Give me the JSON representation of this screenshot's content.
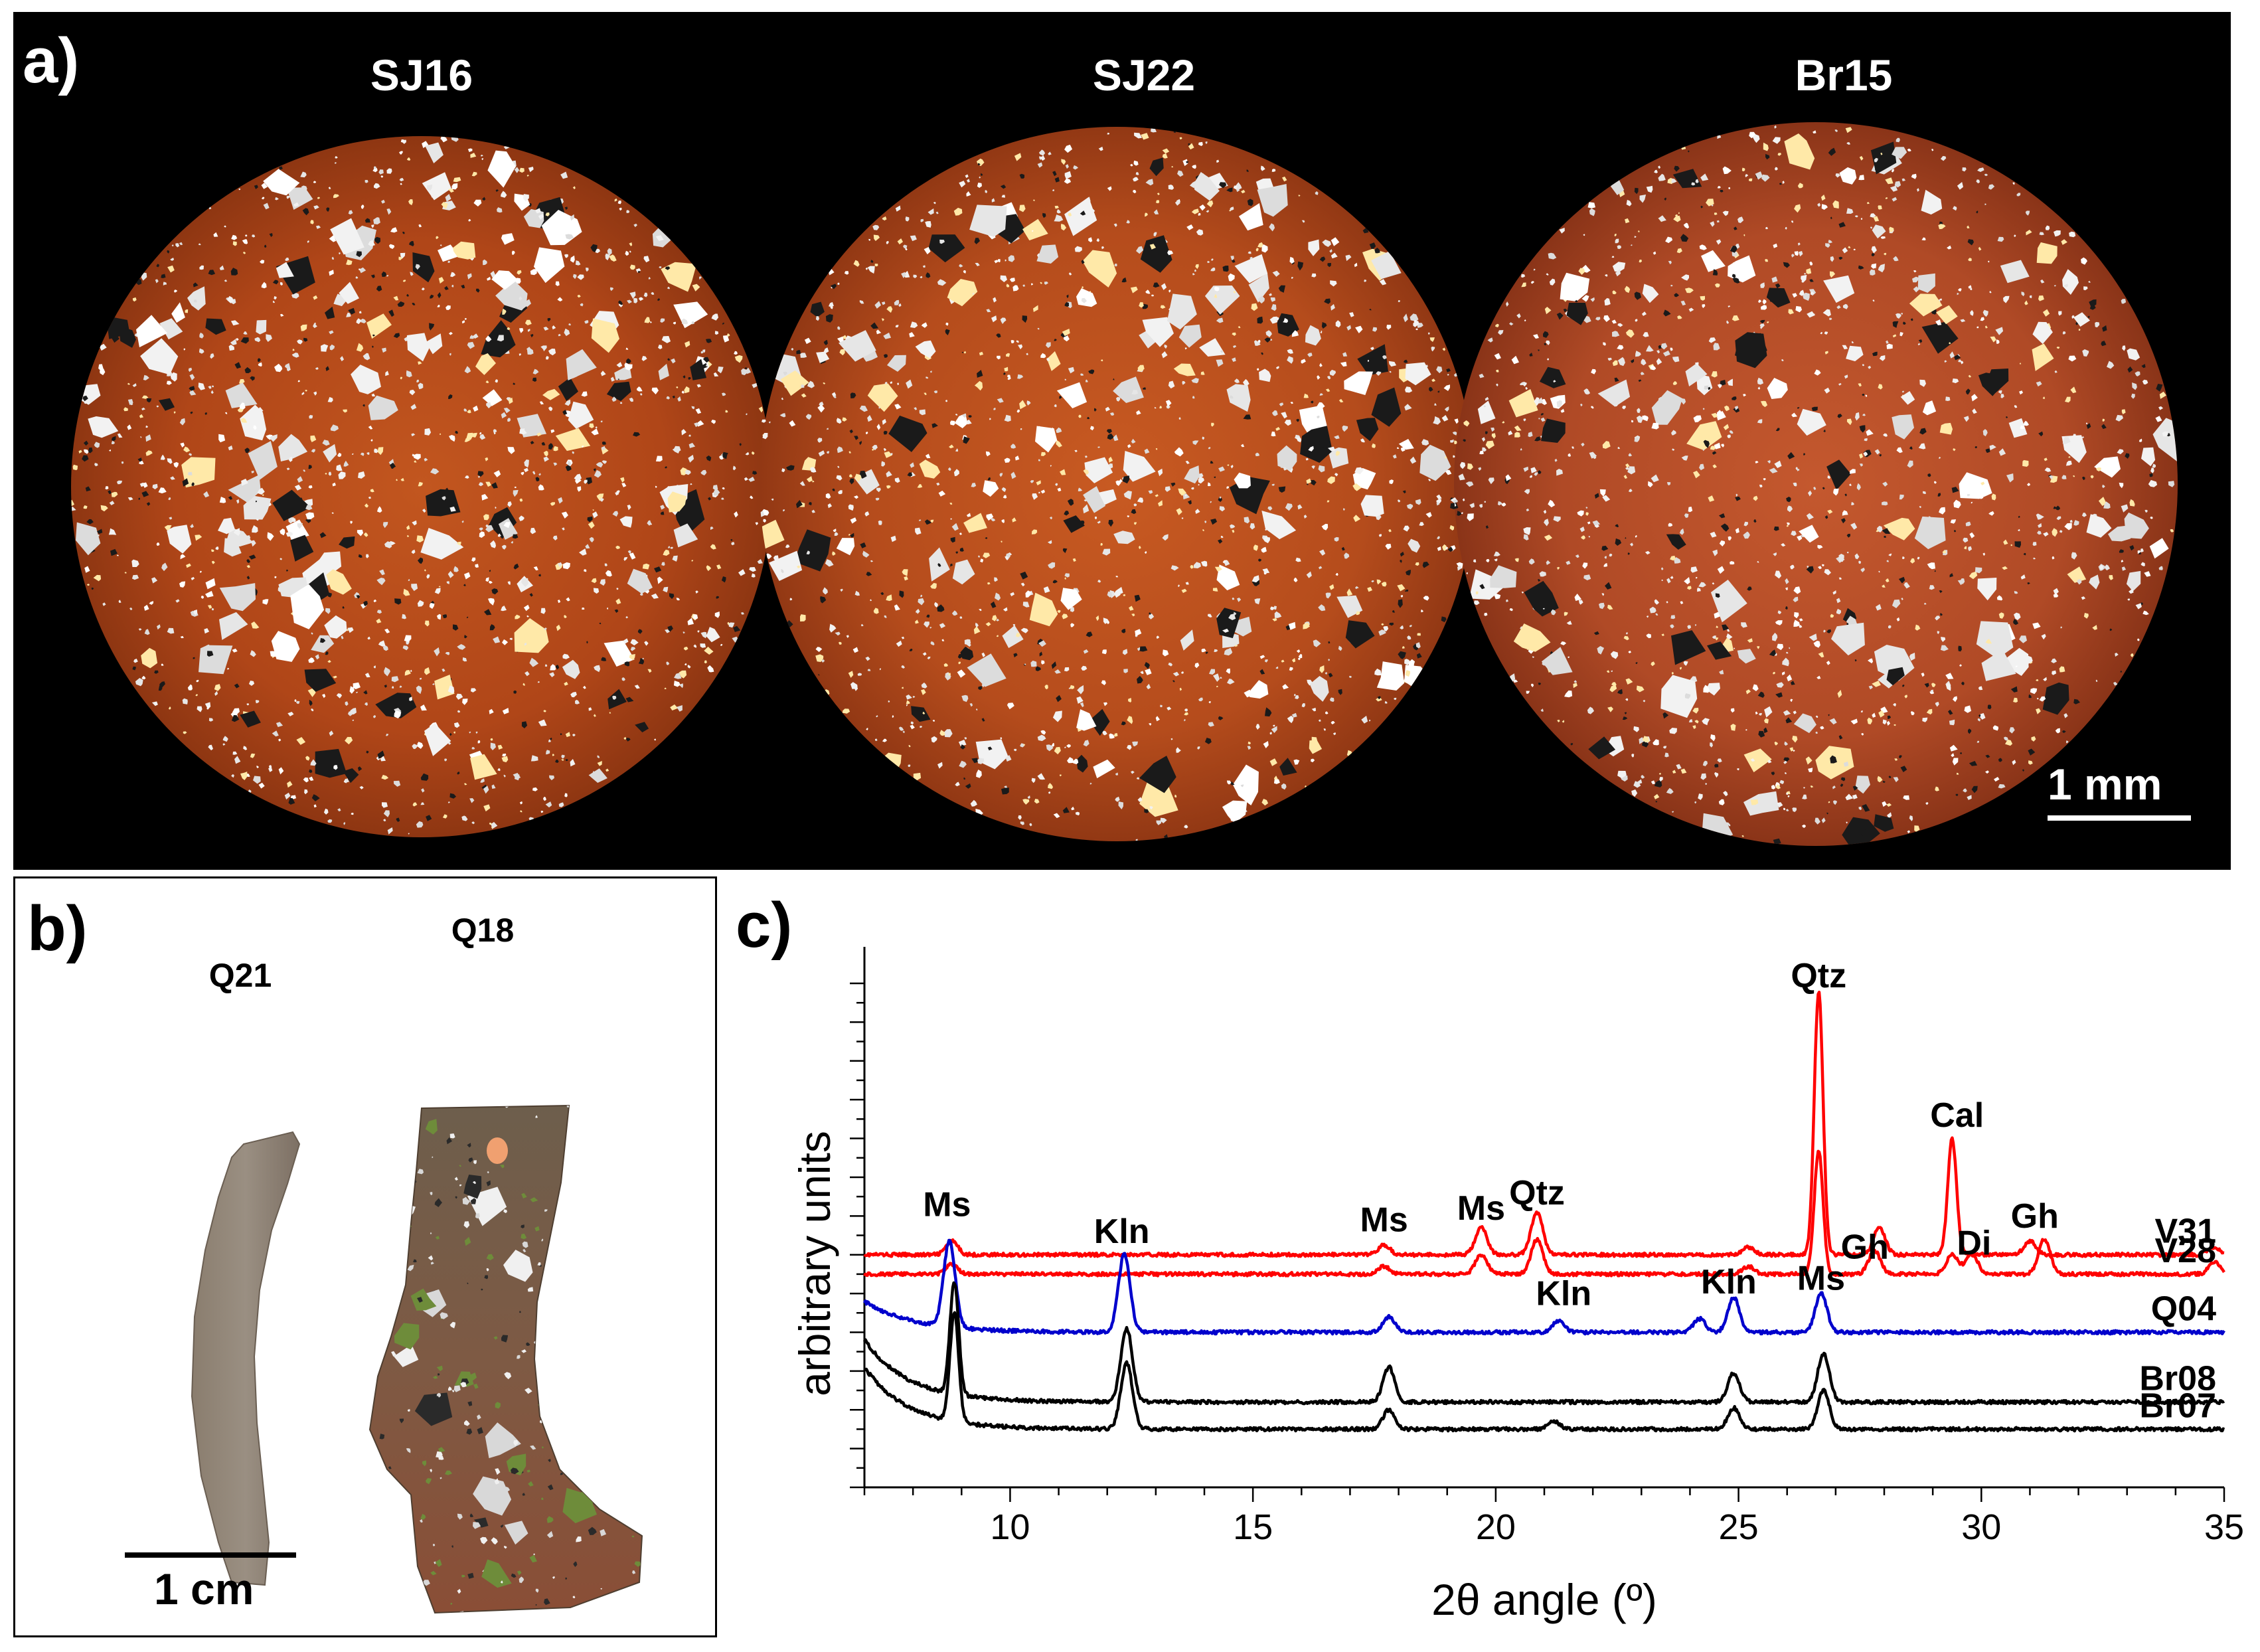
{
  "panel_a": {
    "letter": "a)",
    "samples": [
      "SJ16",
      "SJ22",
      "Br15"
    ],
    "scale_label": "1 mm"
  },
  "panel_b": {
    "letter": "b)",
    "sherds": [
      "Q21",
      "Q18"
    ],
    "scale_label": "1 cm"
  },
  "panel_c": {
    "letter": "c)"
  },
  "colors": {
    "red_series": "#ff0000",
    "blue_series": "#0000cc",
    "black_series": "#000000",
    "fabric": "#b5491c"
  },
  "chart_data": {
    "type": "line",
    "title": "",
    "xlabel": "2θ angle (º)",
    "ylabel": "arbitrary units",
    "xlim": [
      7,
      35
    ],
    "xticks": [
      10,
      15,
      20,
      25,
      30,
      35
    ],
    "y_ticks_labeled": false,
    "series": [
      {
        "name": "V31",
        "color": "#ff0000",
        "baseline": 6.0,
        "peaks": [
          [
            8.8,
            0.35
          ],
          [
            17.7,
            0.25
          ],
          [
            19.7,
            0.7
          ],
          [
            20.85,
            1.1
          ],
          [
            25.2,
            0.2
          ],
          [
            26.65,
            6.8
          ],
          [
            27.9,
            0.7
          ],
          [
            29.4,
            3.0
          ],
          [
            31.0,
            0.35
          ],
          [
            34.8,
            0.2
          ]
        ]
      },
      {
        "name": "V28",
        "color": "#ff0000",
        "baseline": 5.5,
        "peaks": [
          [
            8.8,
            0.25
          ],
          [
            17.7,
            0.2
          ],
          [
            19.7,
            0.5
          ],
          [
            20.85,
            0.9
          ],
          [
            25.2,
            0.2
          ],
          [
            26.65,
            3.2
          ],
          [
            27.8,
            0.6
          ],
          [
            29.4,
            0.5
          ],
          [
            29.8,
            0.55
          ],
          [
            31.3,
            0.9
          ],
          [
            34.8,
            0.3
          ]
        ]
      },
      {
        "name": "Q04",
        "color": "#0000cc",
        "baseline": 4.0,
        "peaks": [
          [
            8.75,
            2.2
          ],
          [
            12.35,
            2.0
          ],
          [
            17.8,
            0.4
          ],
          [
            21.3,
            0.3
          ],
          [
            24.2,
            0.35
          ],
          [
            24.9,
            0.9
          ],
          [
            26.7,
            1.0
          ]
        ]
      },
      {
        "name": "Br08",
        "color": "#000000",
        "baseline": 2.2,
        "peaks": [
          [
            8.85,
            2.9
          ],
          [
            12.4,
            1.9
          ],
          [
            17.8,
            0.9
          ],
          [
            24.9,
            0.75
          ],
          [
            26.75,
            1.25
          ]
        ]
      },
      {
        "name": "Br07",
        "color": "#000000",
        "baseline": 1.5,
        "peaks": [
          [
            8.85,
            2.8
          ],
          [
            12.4,
            1.7
          ],
          [
            17.8,
            0.5
          ],
          [
            21.2,
            0.2
          ],
          [
            24.9,
            0.55
          ],
          [
            26.75,
            1.0
          ]
        ]
      }
    ],
    "annotations": [
      {
        "text": "Ms",
        "x": 8.7,
        "y": 7.0
      },
      {
        "text": "Ms",
        "x": 17.7,
        "y": 6.6
      },
      {
        "text": "Ms",
        "x": 19.7,
        "y": 6.9
      },
      {
        "text": "Qtz",
        "x": 20.85,
        "y": 7.3
      },
      {
        "text": "Qtz",
        "x": 26.65,
        "y": 12.9
      },
      {
        "text": "Cal",
        "x": 29.5,
        "y": 9.3
      },
      {
        "text": "Gh",
        "x": 31.1,
        "y": 6.7
      },
      {
        "text": "Gh",
        "x": 27.6,
        "y": 5.9
      },
      {
        "text": "Di",
        "x": 29.85,
        "y": 6.0
      },
      {
        "text": "Kln",
        "x": 12.3,
        "y": 6.3
      },
      {
        "text": "Kln",
        "x": 21.4,
        "y": 4.7
      },
      {
        "text": "Kln",
        "x": 24.8,
        "y": 5.0
      },
      {
        "text": "Ms",
        "x": 26.7,
        "y": 5.1
      }
    ]
  }
}
